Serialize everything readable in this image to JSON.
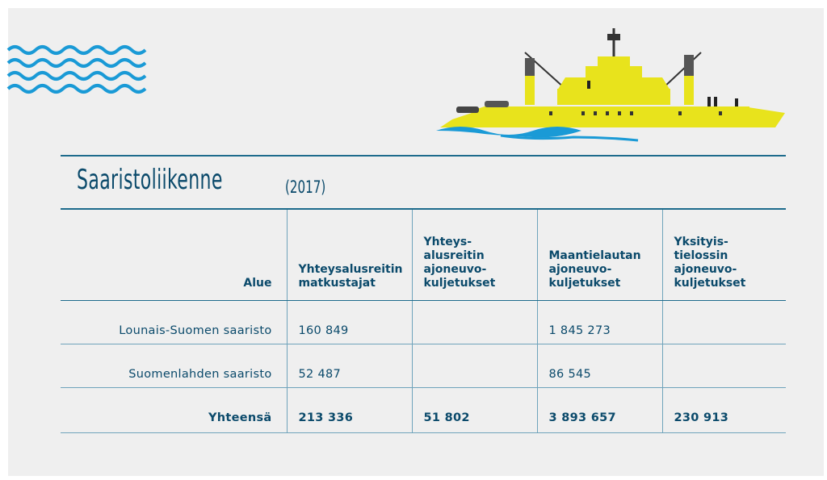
{
  "header": {
    "title": "Saaristoliikenne",
    "subtitle": "(2017)"
  },
  "table": {
    "columns": [
      [
        "Alue"
      ],
      [
        "Yhteysalusreitin",
        "matkustajat"
      ],
      [
        "Yhteys-",
        "alusreitin",
        "ajoneuvo-",
        "kuljetukset"
      ],
      [
        "Maantielautan",
        "ajoneuvo-",
        "kuljetukset"
      ],
      [
        "Yksityis-",
        "tielossin",
        "ajoneuvo-",
        "kuljetukset"
      ]
    ],
    "rows": [
      [
        "Lounais-Suomen saaristo",
        "160 849",
        null,
        "1 845 273",
        null
      ],
      [
        "Suomenlahden saaristo",
        "52 487",
        null,
        "86 545",
        null
      ]
    ],
    "total": [
      "Yhteensä",
      "213 336",
      "51 802",
      "3 893 657",
      "230 913"
    ]
  }
}
